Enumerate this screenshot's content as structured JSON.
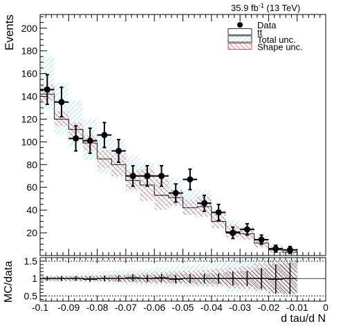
{
  "chart_data": {
    "type": "histogram-ratio",
    "header_label": {
      "lumi": "35.9 fb",
      "sup": "-1",
      "energy": " (13 TeV)"
    },
    "xlabel": "d tau/d N",
    "ylabel_main": "Events",
    "ylabel_ratio": "MC/data",
    "xlim": [
      -0.1,
      0
    ],
    "ylim_main": [
      0,
      212
    ],
    "ylim_ratio": [
      0.35,
      1.6
    ],
    "xticks": [
      "-0.1",
      "-0.09",
      "-0.08",
      "-0.07",
      "-0.06",
      "-0.05",
      "-0.04",
      "-0.03",
      "-0.02",
      "-0.01",
      "0"
    ],
    "yticks_main": [
      "20",
      "40",
      "60",
      "80",
      "100",
      "120",
      "140",
      "160",
      "180",
      "200"
    ],
    "yticks_ratio": [
      "0.5",
      "1",
      "1.5"
    ],
    "legend": [
      {
        "name": "Data",
        "style": "marker"
      },
      {
        "name": "tt",
        "style": "box"
      },
      {
        "name": "Total unc.",
        "style": "hatch-cyan"
      },
      {
        "name": "Shape unc.",
        "style": "hatch-red"
      }
    ],
    "bin_edges": [
      -0.1,
      -0.095,
      -0.09,
      -0.085,
      -0.08,
      -0.075,
      -0.07,
      -0.065,
      -0.06,
      -0.055,
      -0.05,
      -0.045,
      -0.04,
      -0.035,
      -0.03,
      -0.025,
      -0.02,
      -0.015,
      -0.01
    ],
    "mc_tt": [
      142,
      120,
      111,
      99,
      85,
      80,
      66,
      62,
      53,
      51,
      42,
      43,
      30,
      21,
      19,
      11,
      5,
      3
    ],
    "total_unc": [
      [
        128,
        175
      ],
      [
        106,
        152
      ],
      [
        96,
        136
      ],
      [
        84,
        120
      ],
      [
        72,
        107
      ],
      [
        68,
        102
      ],
      [
        56,
        88
      ],
      [
        52,
        82
      ],
      [
        44,
        72
      ],
      [
        42,
        68
      ],
      [
        35,
        58
      ],
      [
        35,
        57
      ],
      [
        24,
        42
      ],
      [
        16,
        31
      ],
      [
        14,
        28
      ],
      [
        7,
        18
      ],
      [
        2,
        10
      ],
      [
        0.5,
        6
      ]
    ],
    "shape_unc": [
      [
        136,
        150
      ],
      [
        114,
        127
      ],
      [
        104,
        117
      ],
      [
        92,
        106
      ],
      [
        77,
        93
      ],
      [
        70,
        90
      ],
      [
        58,
        75
      ],
      [
        48,
        76
      ],
      [
        40,
        67
      ],
      [
        44,
        58
      ],
      [
        36,
        49
      ],
      [
        34,
        52
      ],
      [
        24,
        37
      ],
      [
        16,
        27
      ],
      [
        14,
        25
      ],
      [
        7,
        15
      ],
      [
        2,
        8
      ],
      [
        1,
        5
      ]
    ],
    "data": [
      {
        "x": -0.0975,
        "y": 146,
        "err": 13
      },
      {
        "x": -0.0925,
        "y": 135,
        "err": 13
      },
      {
        "x": -0.0875,
        "y": 103,
        "err": 11
      },
      {
        "x": -0.0825,
        "y": 101,
        "err": 11
      },
      {
        "x": -0.0775,
        "y": 106,
        "err": 11
      },
      {
        "x": -0.0725,
        "y": 92,
        "err": 10
      },
      {
        "x": -0.0675,
        "y": 70,
        "err": 9
      },
      {
        "x": -0.0625,
        "y": 70,
        "err": 9
      },
      {
        "x": -0.0575,
        "y": 70,
        "err": 9
      },
      {
        "x": -0.0525,
        "y": 55,
        "err": 8
      },
      {
        "x": -0.0475,
        "y": 67,
        "err": 9
      },
      {
        "x": -0.0425,
        "y": 46,
        "err": 7
      },
      {
        "x": -0.0375,
        "y": 38,
        "err": 7
      },
      {
        "x": -0.0325,
        "y": 20,
        "err": 5
      },
      {
        "x": -0.0275,
        "y": 23,
        "err": 5
      },
      {
        "x": -0.0225,
        "y": 14,
        "err": 4
      },
      {
        "x": -0.0175,
        "y": 6,
        "err": 3
      },
      {
        "x": -0.0125,
        "y": 5,
        "err": 3
      }
    ],
    "ratio": [
      1.0,
      1.0,
      1.0,
      0.98,
      1.0,
      1.0,
      1.02,
      1.0,
      1.02,
      0.98,
      1.0,
      1.0,
      1.0,
      1.0,
      1.0,
      1.0,
      0.98,
      1.0
    ],
    "ratio_err": [
      0.06,
      0.07,
      0.07,
      0.08,
      0.08,
      0.09,
      0.1,
      0.1,
      0.11,
      0.12,
      0.13,
      0.14,
      0.15,
      0.2,
      0.22,
      0.3,
      0.42,
      0.45
    ],
    "ratio_total_unc": [
      [
        0.9,
        1.1
      ],
      [
        0.88,
        1.12
      ],
      [
        0.88,
        1.15
      ],
      [
        0.86,
        1.16
      ],
      [
        0.85,
        1.2
      ],
      [
        0.83,
        1.22
      ],
      [
        0.82,
        1.25
      ],
      [
        0.8,
        1.28
      ],
      [
        0.8,
        1.32
      ],
      [
        0.78,
        1.35
      ],
      [
        0.76,
        1.38
      ],
      [
        0.74,
        1.4
      ],
      [
        0.72,
        1.45
      ],
      [
        0.62,
        1.55
      ],
      [
        0.6,
        1.58
      ],
      [
        0.55,
        1.6
      ],
      [
        0.5,
        1.6
      ],
      [
        0.45,
        1.6
      ]
    ],
    "ratio_shape_unc": [
      [
        0.95,
        1.05
      ],
      [
        0.94,
        1.06
      ],
      [
        0.94,
        1.07
      ],
      [
        0.93,
        1.08
      ],
      [
        0.92,
        1.1
      ],
      [
        0.9,
        1.12
      ],
      [
        0.88,
        1.14
      ],
      [
        0.86,
        1.16
      ],
      [
        0.85,
        1.18
      ],
      [
        0.84,
        1.2
      ],
      [
        0.82,
        1.22
      ],
      [
        0.8,
        1.25
      ],
      [
        0.78,
        1.28
      ],
      [
        0.72,
        1.32
      ],
      [
        0.7,
        1.35
      ],
      [
        0.65,
        1.45
      ],
      [
        0.58,
        1.5
      ],
      [
        0.55,
        1.5
      ]
    ]
  }
}
